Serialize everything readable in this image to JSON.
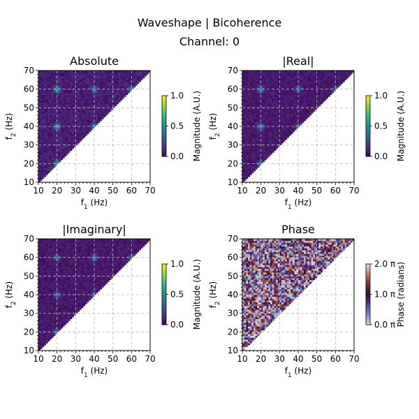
{
  "figure": {
    "title": "Waveshape | Bicoherence",
    "subtitle": "Channel: 0"
  },
  "colors": {
    "viridis": [
      "#440154",
      "#482878",
      "#3e4989",
      "#31688e",
      "#26828e",
      "#1f9e89",
      "#35b779",
      "#6ece58",
      "#b5de2b",
      "#fde725"
    ],
    "twilight": [
      "#e2d9e2",
      "#9eb0c7",
      "#6a81c1",
      "#5d4eab",
      "#4b2673",
      "#2f1436",
      "#591d3a",
      "#8e3341",
      "#b5674f",
      "#cfa692",
      "#e2d9e2"
    ],
    "grid": "#bbbbbb"
  },
  "chart_data": [
    {
      "type": "heatmap",
      "title": "Absolute",
      "xlabel": "f1 (Hz)",
      "ylabel": "f2 (Hz)",
      "xlim": [
        10,
        70
      ],
      "ylim": [
        10,
        70
      ],
      "xticks": [
        "10",
        "20",
        "30",
        "40",
        "50",
        "60",
        "70"
      ],
      "yticks": [
        "10",
        "20",
        "30",
        "40",
        "50",
        "60",
        "70"
      ],
      "grid": true,
      "region": "f2 >= f1",
      "colormap": "viridis",
      "colorbar": {
        "label": "Magnitude (A.U.)",
        "range": [
          0,
          1
        ],
        "ticks": [
          "0.0",
          "0.5",
          "1.0"
        ]
      },
      "peaks": [
        {
          "f1": 20,
          "f2": 60,
          "value": 0.55
        },
        {
          "f1": 40,
          "f2": 60,
          "value": 0.45
        },
        {
          "f1": 20,
          "f2": 40,
          "value": 0.6
        },
        {
          "f1": 40,
          "f2": 40,
          "value": 0.4
        },
        {
          "f1": 20,
          "f2": 20,
          "value": 0.55
        },
        {
          "f1": 60,
          "f2": 60,
          "value": 0.4
        }
      ],
      "background_level": 0.1
    },
    {
      "type": "heatmap",
      "title": "|Real|",
      "xlabel": "f1 (Hz)",
      "ylabel": "f2 (Hz)",
      "xlim": [
        10,
        70
      ],
      "ylim": [
        10,
        70
      ],
      "xticks": [
        "10",
        "20",
        "30",
        "40",
        "50",
        "60",
        "70"
      ],
      "yticks": [
        "10",
        "20",
        "30",
        "40",
        "50",
        "60",
        "70"
      ],
      "grid": true,
      "region": "f2 >= f1",
      "colormap": "viridis",
      "colorbar": {
        "label": "Magnitude (A.U.)",
        "range": [
          0,
          1
        ],
        "ticks": [
          "0.0",
          "0.5",
          "1.0"
        ]
      },
      "peaks": [
        {
          "f1": 20,
          "f2": 60,
          "value": 0.45
        },
        {
          "f1": 40,
          "f2": 60,
          "value": 0.35
        },
        {
          "f1": 20,
          "f2": 40,
          "value": 0.45
        },
        {
          "f1": 40,
          "f2": 40,
          "value": 0.3
        },
        {
          "f1": 20,
          "f2": 20,
          "value": 0.45
        },
        {
          "f1": 60,
          "f2": 60,
          "value": 0.3
        }
      ],
      "background_level": 0.08
    },
    {
      "type": "heatmap",
      "title": "|Imaginary|",
      "xlabel": "f1 (Hz)",
      "ylabel": "f2 (Hz)",
      "xlim": [
        10,
        70
      ],
      "ylim": [
        10,
        70
      ],
      "xticks": [
        "10",
        "20",
        "30",
        "40",
        "50",
        "60",
        "70"
      ],
      "yticks": [
        "10",
        "20",
        "30",
        "40",
        "50",
        "60",
        "70"
      ],
      "grid": true,
      "region": "f2 >= f1",
      "colormap": "viridis",
      "colorbar": {
        "label": "Magnitude (A.U.)",
        "range": [
          0,
          1
        ],
        "ticks": [
          "0.0",
          "0.5",
          "1.0"
        ]
      },
      "peaks": [
        {
          "f1": 20,
          "f2": 60,
          "value": 0.4
        },
        {
          "f1": 40,
          "f2": 60,
          "value": 0.4
        },
        {
          "f1": 20,
          "f2": 40,
          "value": 0.4
        },
        {
          "f1": 40,
          "f2": 40,
          "value": 0.35
        },
        {
          "f1": 20,
          "f2": 20,
          "value": 0.4
        },
        {
          "f1": 60,
          "f2": 60,
          "value": 0.3
        }
      ],
      "background_level": 0.08
    },
    {
      "type": "heatmap",
      "title": "Phase",
      "xlabel": "f1 (Hz)",
      "ylabel": "f2 (Hz)",
      "xlim": [
        10,
        70
      ],
      "ylim": [
        10,
        70
      ],
      "xticks": [
        "10",
        "20",
        "30",
        "40",
        "50",
        "60",
        "70"
      ],
      "yticks": [
        "10",
        "20",
        "30",
        "40",
        "50",
        "60",
        "70"
      ],
      "grid": true,
      "region": "f2 >= f1",
      "colormap": "twilight",
      "colorbar": {
        "label": "Phase (radians)",
        "range": [
          0,
          6.283
        ],
        "ticks": [
          "0.0 π",
          "1.0 π",
          "2.0 π"
        ]
      },
      "peaks": [],
      "background_level": null
    }
  ]
}
